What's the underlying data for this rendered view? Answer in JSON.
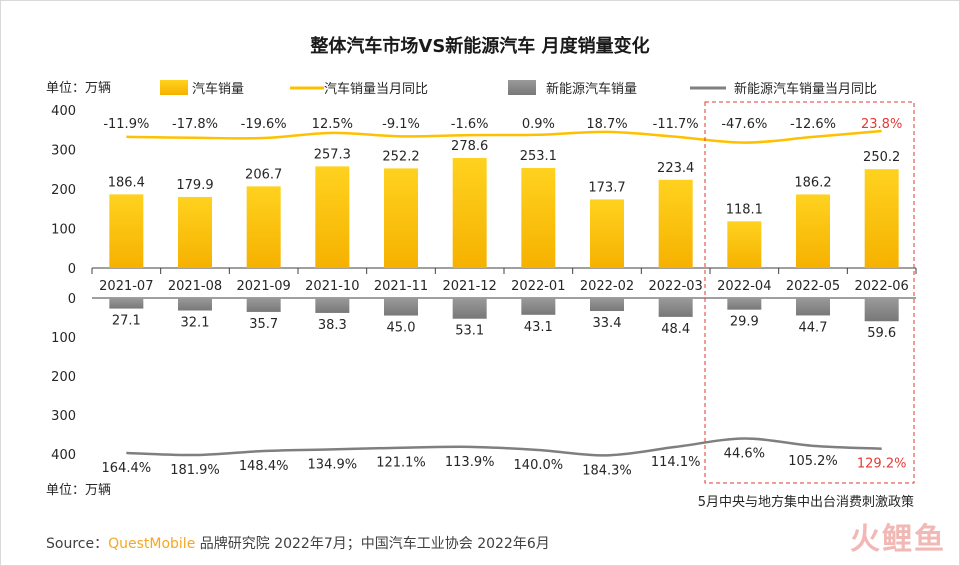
{
  "chart_data": {
    "type": "bar",
    "title": "整体汽车市场VS新能源汽车 月度销量变化",
    "categories": [
      "2021-07",
      "2021-08",
      "2021-09",
      "2021-10",
      "2021-11",
      "2021-12",
      "2022-01",
      "2022-02",
      "2022-03",
      "2022-04",
      "2022-05",
      "2022-06"
    ],
    "top_panel": {
      "unit_label": "单位：万辆",
      "ylim": [
        0,
        400
      ],
      "yticks": [
        "0",
        "100",
        "200",
        "300",
        "400"
      ],
      "series": [
        {
          "name": "汽车销量",
          "type": "bar",
          "values": [
            186.4,
            179.9,
            206.7,
            257.3,
            252.2,
            278.6,
            253.1,
            173.7,
            223.4,
            118.1,
            186.2,
            250.2
          ],
          "labels": [
            "186.4",
            "179.9",
            "206.7",
            "257.3",
            "252.2",
            "278.6",
            "253.1",
            "173.7",
            "223.4",
            "118.1",
            "186.2",
            "250.2"
          ]
        },
        {
          "name": "汽车销量当月同比",
          "type": "line",
          "values": [
            -11.9,
            -17.8,
            -19.6,
            12.5,
            -9.1,
            -1.6,
            0.9,
            18.7,
            -11.7,
            -47.6,
            -12.6,
            23.8
          ],
          "labels": [
            "-11.9%",
            "-17.8%",
            "-19.6%",
            "12.5%",
            "-9.1%",
            "-1.6%",
            "0.9%",
            "18.7%",
            "-11.7%",
            "-47.6%",
            "-12.6%",
            "23.8%"
          ]
        }
      ]
    },
    "bottom_panel": {
      "unit_label": "单位：万辆",
      "ylim": [
        0,
        400
      ],
      "inverted": true,
      "yticks": [
        "0",
        "100",
        "200",
        "300",
        "400"
      ],
      "series": [
        {
          "name": "新能源汽车销量",
          "type": "bar",
          "values": [
            27.1,
            32.1,
            35.7,
            38.3,
            45.0,
            53.1,
            43.1,
            33.4,
            48.4,
            29.9,
            44.7,
            59.6
          ],
          "labels": [
            "27.1",
            "32.1",
            "35.7",
            "38.3",
            "45.0",
            "53.1",
            "43.1",
            "33.4",
            "48.4",
            "29.9",
            "44.7",
            "59.6"
          ]
        },
        {
          "name": "新能源汽车销量当月同比",
          "type": "line",
          "values": [
            164.4,
            181.9,
            148.4,
            134.9,
            121.1,
            113.9,
            140.0,
            184.3,
            114.1,
            44.6,
            105.2,
            129.2
          ],
          "labels": [
            "164.4%",
            "181.9%",
            "148.4%",
            "134.9%",
            "121.1%",
            "113.9%",
            "140.0%",
            "184.3%",
            "114.1%",
            "44.6%",
            "105.2%",
            "129.2%"
          ]
        }
      ]
    },
    "highlight": {
      "label": "5月中央与地方集中出台消费刺激政策",
      "from_index": 9,
      "to_index": 11
    },
    "colors": {
      "car_bar": "#ffc000",
      "car_line": "#ffc000",
      "nev_bar": "#8c8c8c",
      "nev_line": "#7f7f7f",
      "highlight_text": "#e53935",
      "highlight_box": "#e53935"
    }
  },
  "source": {
    "prefix": "Source：",
    "brand": "QuestMobile",
    "text": " 品牌研究院 2022年7月；中国汽车工业协会 2022年6月"
  },
  "watermark": "火鲤鱼"
}
